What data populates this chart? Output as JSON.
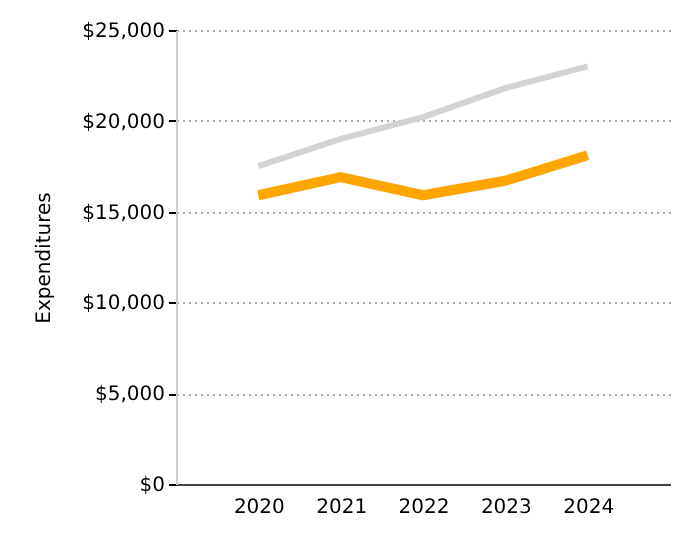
{
  "chart_data": {
    "type": "line",
    "ylabel": "Expenditures",
    "categories": [
      "2020",
      "2021",
      "2022",
      "2023",
      "2024"
    ],
    "series": [
      {
        "color": "#d3d3d3",
        "values": [
          17500,
          19000,
          20200,
          21800,
          23000
        ]
      },
      {
        "color": "#ffa500",
        "values": [
          15900,
          16900,
          15900,
          16700,
          18100
        ]
      }
    ],
    "ylim": [
      0,
      25000
    ],
    "yticks": [
      {
        "value": 0,
        "label": "$0"
      },
      {
        "value": 5000,
        "label": "$5,000"
      },
      {
        "value": 10000,
        "label": "$10,000"
      },
      {
        "value": 15000,
        "label": "$15,000"
      },
      {
        "value": 20000,
        "label": "$20,000"
      },
      {
        "value": 25000,
        "label": "$25,000"
      }
    ],
    "grid": "y",
    "marker": "none",
    "line_style": "solid"
  }
}
